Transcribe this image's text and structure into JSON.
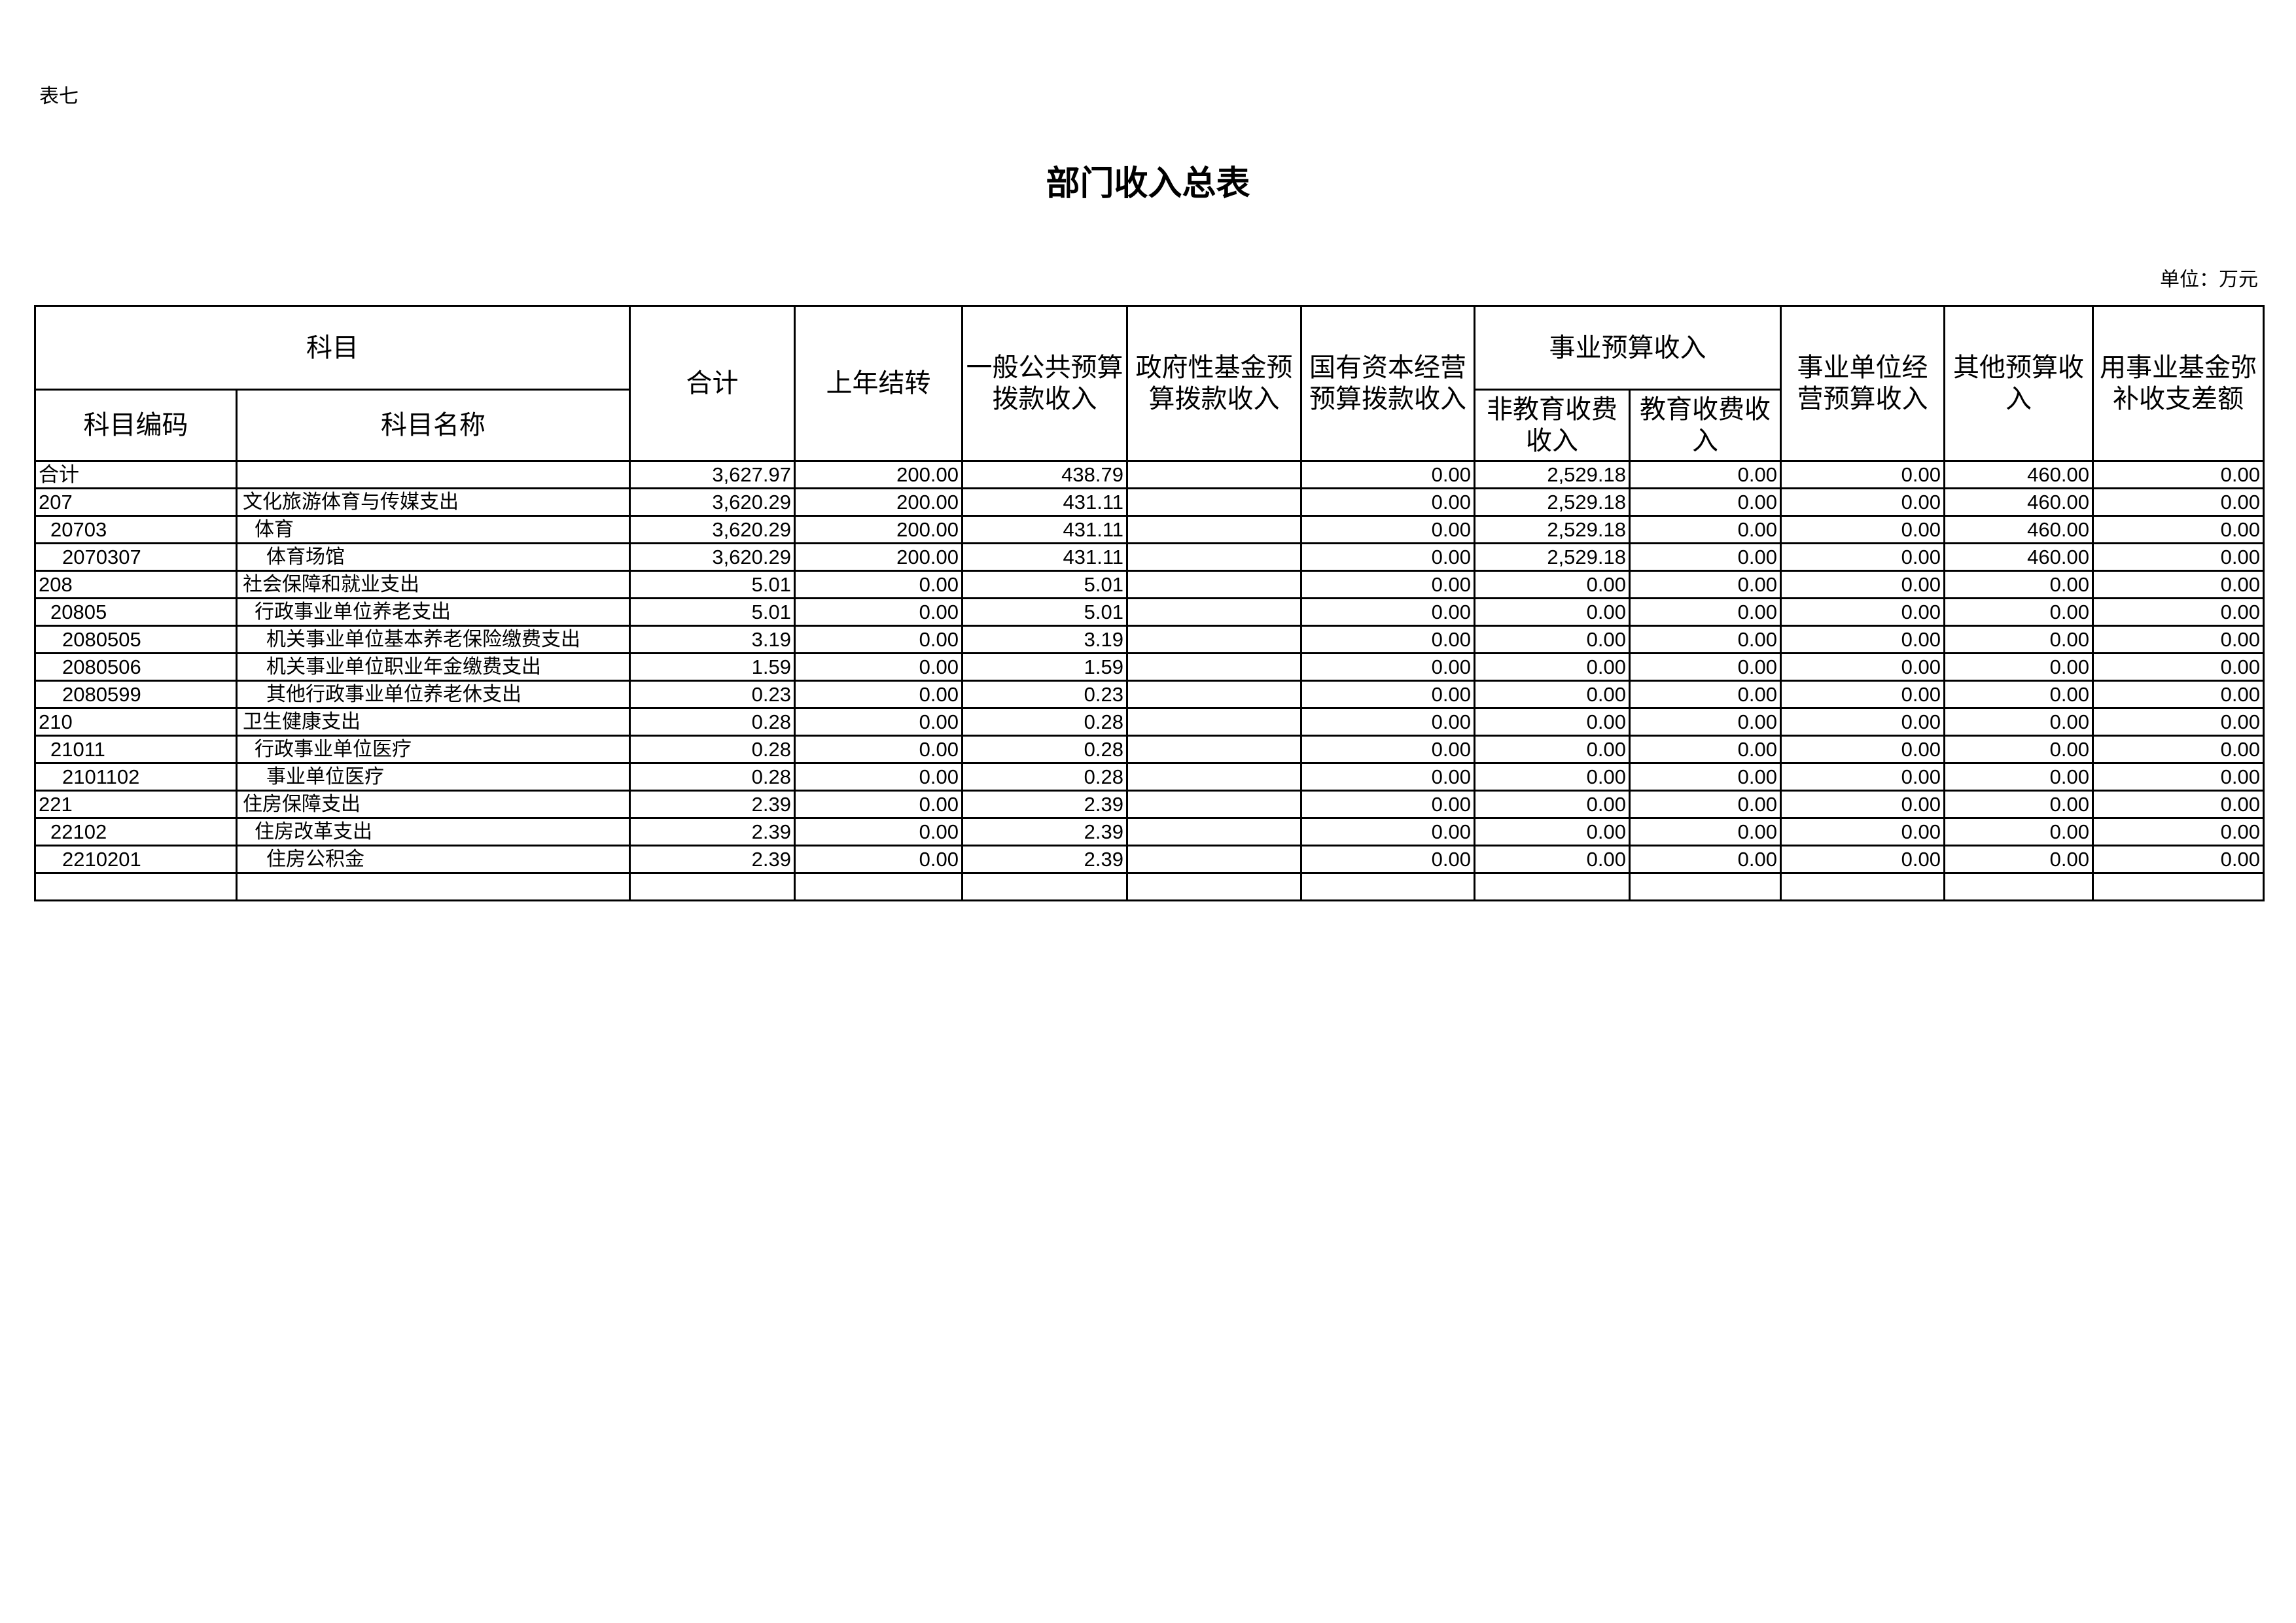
{
  "page_label": "表七",
  "title": "部门收入总表",
  "unit": "单位：万元",
  "headers": {
    "subject": "科目",
    "code": "科目编码",
    "name": "科目名称",
    "total": "合计",
    "carryover": "上年结转",
    "general": "一般公共预算拨款收入",
    "gov_fund": "政府性基金预算拨款收入",
    "state_capital": "国有资本经营预算拨款收入",
    "career": "事业预算收入",
    "non_edu": "非教育收费收入",
    "edu": "教育收费收入",
    "operation": "事业单位经营预算收入",
    "other": "其他预算收入",
    "fund_supplement": "用事业基金弥补收支差额"
  },
  "rows": [
    {
      "code": "合计",
      "name": "",
      "level": 0,
      "v": [
        "3,627.97",
        "200.00",
        "438.79",
        "",
        "0.00",
        "2,529.18",
        "0.00",
        "0.00",
        "460.00",
        "0.00"
      ]
    },
    {
      "code": "207",
      "name": "文化旅游体育与传媒支出",
      "level": 0,
      "v": [
        "3,620.29",
        "200.00",
        "431.11",
        "",
        "0.00",
        "2,529.18",
        "0.00",
        "0.00",
        "460.00",
        "0.00"
      ]
    },
    {
      "code": "20703",
      "name": "体育",
      "level": 1,
      "v": [
        "3,620.29",
        "200.00",
        "431.11",
        "",
        "0.00",
        "2,529.18",
        "0.00",
        "0.00",
        "460.00",
        "0.00"
      ]
    },
    {
      "code": "2070307",
      "name": "体育场馆",
      "level": 2,
      "v": [
        "3,620.29",
        "200.00",
        "431.11",
        "",
        "0.00",
        "2,529.18",
        "0.00",
        "0.00",
        "460.00",
        "0.00"
      ]
    },
    {
      "code": "208",
      "name": "社会保障和就业支出",
      "level": 0,
      "v": [
        "5.01",
        "0.00",
        "5.01",
        "",
        "0.00",
        "0.00",
        "0.00",
        "0.00",
        "0.00",
        "0.00"
      ]
    },
    {
      "code": "20805",
      "name": "行政事业单位养老支出",
      "level": 1,
      "v": [
        "5.01",
        "0.00",
        "5.01",
        "",
        "0.00",
        "0.00",
        "0.00",
        "0.00",
        "0.00",
        "0.00"
      ]
    },
    {
      "code": "2080505",
      "name": "机关事业单位基本养老保险缴费支出",
      "level": 2,
      "v": [
        "3.19",
        "0.00",
        "3.19",
        "",
        "0.00",
        "0.00",
        "0.00",
        "0.00",
        "0.00",
        "0.00"
      ]
    },
    {
      "code": "2080506",
      "name": "机关事业单位职业年金缴费支出",
      "level": 2,
      "v": [
        "1.59",
        "0.00",
        "1.59",
        "",
        "0.00",
        "0.00",
        "0.00",
        "0.00",
        "0.00",
        "0.00"
      ]
    },
    {
      "code": "2080599",
      "name": "其他行政事业单位养老休支出",
      "level": 2,
      "v": [
        "0.23",
        "0.00",
        "0.23",
        "",
        "0.00",
        "0.00",
        "0.00",
        "0.00",
        "0.00",
        "0.00"
      ]
    },
    {
      "code": "210",
      "name": "卫生健康支出",
      "level": 0,
      "v": [
        "0.28",
        "0.00",
        "0.28",
        "",
        "0.00",
        "0.00",
        "0.00",
        "0.00",
        "0.00",
        "0.00"
      ]
    },
    {
      "code": "21011",
      "name": "行政事业单位医疗",
      "level": 1,
      "v": [
        "0.28",
        "0.00",
        "0.28",
        "",
        "0.00",
        "0.00",
        "0.00",
        "0.00",
        "0.00",
        "0.00"
      ]
    },
    {
      "code": "2101102",
      "name": "事业单位医疗",
      "level": 2,
      "v": [
        "0.28",
        "0.00",
        "0.28",
        "",
        "0.00",
        "0.00",
        "0.00",
        "0.00",
        "0.00",
        "0.00"
      ]
    },
    {
      "code": "221",
      "name": "住房保障支出",
      "level": 0,
      "v": [
        "2.39",
        "0.00",
        "2.39",
        "",
        "0.00",
        "0.00",
        "0.00",
        "0.00",
        "0.00",
        "0.00"
      ]
    },
    {
      "code": "22102",
      "name": "住房改革支出",
      "level": 1,
      "v": [
        "2.39",
        "0.00",
        "2.39",
        "",
        "0.00",
        "0.00",
        "0.00",
        "0.00",
        "0.00",
        "0.00"
      ]
    },
    {
      "code": "2210201",
      "name": "住房公积金",
      "level": 2,
      "v": [
        "2.39",
        "0.00",
        "2.39",
        "",
        "0.00",
        "0.00",
        "0.00",
        "0.00",
        "0.00",
        "0.00"
      ]
    },
    {
      "code": "",
      "name": "",
      "level": 0,
      "v": [
        "",
        "",
        "",
        "",
        "",
        "",
        "",
        "",
        "",
        ""
      ]
    }
  ]
}
